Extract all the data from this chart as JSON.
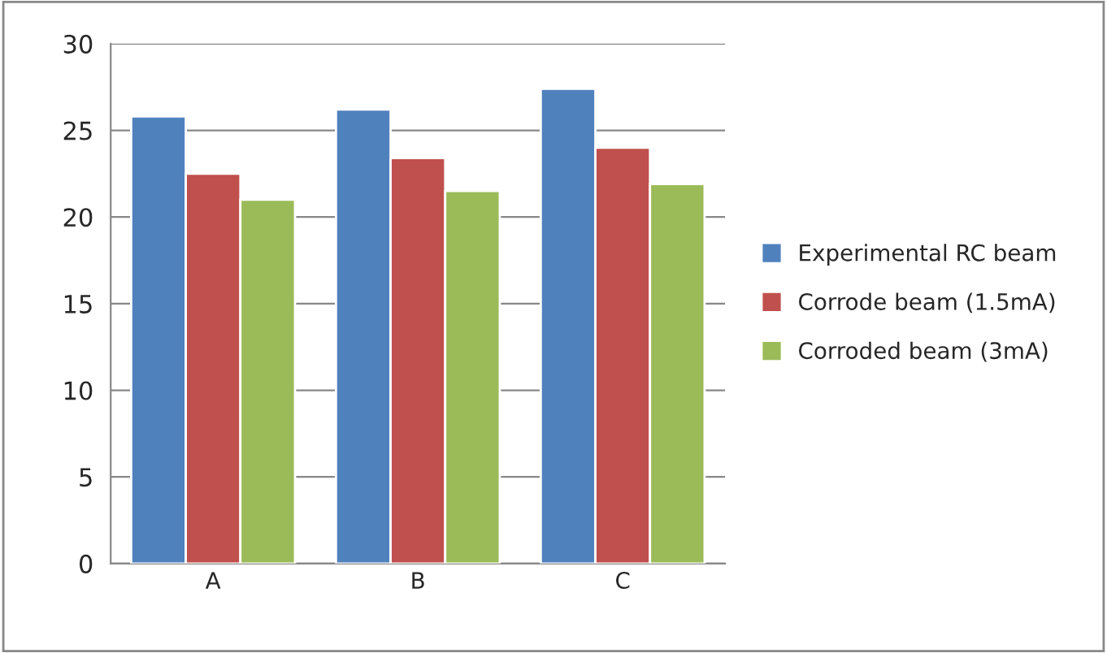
{
  "chart_data": {
    "type": "bar",
    "categories": [
      "A",
      "B",
      "C"
    ],
    "series": [
      {
        "name": "Experimental RC beam",
        "color": "#4f81bd",
        "values": [
          25.8,
          26.2,
          27.4
        ]
      },
      {
        "name": "Corrode beam (1.5mA)",
        "color": "#c0504d",
        "values": [
          22.5,
          23.4,
          24.0
        ]
      },
      {
        "name": "Corroded beam (3mA)",
        "color": "#9bbb59",
        "values": [
          21.0,
          21.5,
          21.9
        ]
      }
    ],
    "ylim": [
      0,
      30
    ],
    "yticks": [
      0,
      5,
      10,
      15,
      20,
      25,
      30
    ],
    "grid": "y",
    "legend": "right"
  }
}
